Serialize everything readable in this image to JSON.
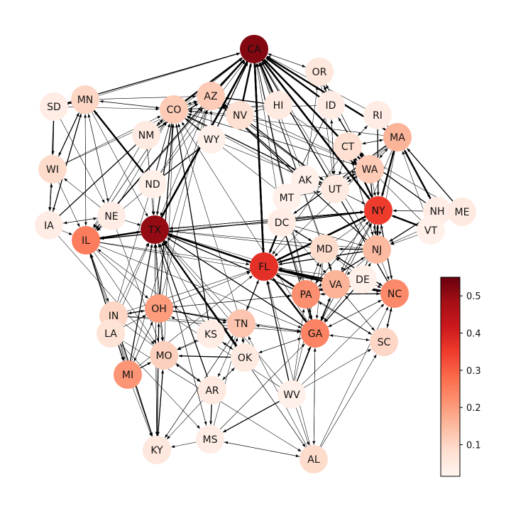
{
  "colorbar": {
    "ticks": [
      "0.1",
      "0.2",
      "0.3",
      "0.4",
      "0.5"
    ],
    "tick_values": [
      0.1,
      0.2,
      0.3,
      0.4,
      0.5
    ],
    "range": [
      0.015,
      0.55
    ],
    "colors": [
      "#fff5f0",
      "#fee0d2",
      "#fcbba1",
      "#fc9272",
      "#fb6a4a",
      "#ef3b2c",
      "#cb181d",
      "#a50f15",
      "#67000d"
    ]
  },
  "nodes": [
    {
      "id": "CA",
      "value": 0.52
    },
    {
      "id": "OR",
      "value": 0.06
    },
    {
      "id": "SD",
      "value": 0.04
    },
    {
      "id": "MN",
      "value": 0.1
    },
    {
      "id": "AZ",
      "value": 0.12
    },
    {
      "id": "CO",
      "value": 0.12
    },
    {
      "id": "NV",
      "value": 0.08
    },
    {
      "id": "HI",
      "value": 0.05
    },
    {
      "id": "ID",
      "value": 0.04
    },
    {
      "id": "RI",
      "value": 0.04
    },
    {
      "id": "MA",
      "value": 0.16
    },
    {
      "id": "NM",
      "value": 0.05
    },
    {
      "id": "WY",
      "value": 0.03
    },
    {
      "id": "CT",
      "value": 0.08
    },
    {
      "id": "WI",
      "value": 0.09
    },
    {
      "id": "WA",
      "value": 0.12
    },
    {
      "id": "ND",
      "value": 0.03
    },
    {
      "id": "AK",
      "value": 0.03
    },
    {
      "id": "UT",
      "value": 0.05
    },
    {
      "id": "MT",
      "value": 0.03
    },
    {
      "id": "NY",
      "value": 0.35
    },
    {
      "id": "NH",
      "value": 0.04
    },
    {
      "id": "ME",
      "value": 0.05
    },
    {
      "id": "IA",
      "value": 0.04
    },
    {
      "id": "NE",
      "value": 0.04
    },
    {
      "id": "TX",
      "value": 0.5
    },
    {
      "id": "DC",
      "value": 0.04
    },
    {
      "id": "VT",
      "value": 0.03
    },
    {
      "id": "IL",
      "value": 0.25
    },
    {
      "id": "MD",
      "value": 0.09
    },
    {
      "id": "NJ",
      "value": 0.15
    },
    {
      "id": "FL",
      "value": 0.37
    },
    {
      "id": "DE",
      "value": 0.03
    },
    {
      "id": "VA",
      "value": 0.16
    },
    {
      "id": "PA",
      "value": 0.22
    },
    {
      "id": "NC",
      "value": 0.23
    },
    {
      "id": "IN",
      "value": 0.1
    },
    {
      "id": "OH",
      "value": 0.2
    },
    {
      "id": "LA",
      "value": 0.07
    },
    {
      "id": "KS",
      "value": 0.04
    },
    {
      "id": "TN",
      "value": 0.13
    },
    {
      "id": "GA",
      "value": 0.24
    },
    {
      "id": "SC",
      "value": 0.1
    },
    {
      "id": "MO",
      "value": 0.11
    },
    {
      "id": "OK",
      "value": 0.05
    },
    {
      "id": "MI",
      "value": 0.21
    },
    {
      "id": "AR",
      "value": 0.05
    },
    {
      "id": "WV",
      "value": 0.03
    },
    {
      "id": "KY",
      "value": 0.06
    },
    {
      "id": "MS",
      "value": 0.04
    },
    {
      "id": "AL",
      "value": 0.09
    }
  ],
  "edges": [
    [
      "TX",
      "CA"
    ],
    [
      "FL",
      "CA"
    ],
    [
      "NY",
      "CA"
    ],
    [
      "AZ",
      "CA"
    ],
    [
      "CO",
      "CA"
    ],
    [
      "NV",
      "CA"
    ],
    [
      "HI",
      "CA"
    ],
    [
      "OR",
      "CA"
    ],
    [
      "ID",
      "CA"
    ],
    [
      "CT",
      "CA"
    ],
    [
      "MA",
      "CA"
    ],
    [
      "WA",
      "CA"
    ],
    [
      "UT",
      "CA"
    ],
    [
      "IL",
      "CA"
    ],
    [
      "MN",
      "CA"
    ],
    [
      "SD",
      "CA"
    ],
    [
      "NJ",
      "CA"
    ],
    [
      "PA",
      "CA"
    ],
    [
      "VA",
      "CA"
    ],
    [
      "GA",
      "CA"
    ],
    [
      "NC",
      "CA"
    ],
    [
      "MD",
      "CA"
    ],
    [
      "DC",
      "CA"
    ],
    [
      "MT",
      "CA"
    ],
    [
      "AK",
      "CA"
    ],
    [
      "WY",
      "CA"
    ],
    [
      "NM",
      "CA"
    ],
    [
      "ND",
      "CA"
    ],
    [
      "RI",
      "CA"
    ],
    [
      "CA",
      "OR"
    ],
    [
      "CA",
      "WA"
    ],
    [
      "CA",
      "AZ"
    ],
    [
      "CA",
      "TX"
    ],
    [
      "CA",
      "NY"
    ],
    [
      "CA",
      "FL"
    ],
    [
      "CA",
      "TX"
    ],
    [
      "FL",
      "TX"
    ],
    [
      "NY",
      "TX"
    ],
    [
      "IL",
      "TX"
    ],
    [
      "OK",
      "TX"
    ],
    [
      "AR",
      "TX"
    ],
    [
      "LA",
      "TX"
    ],
    [
      "KS",
      "TX"
    ],
    [
      "MO",
      "TX"
    ],
    [
      "TN",
      "TX"
    ],
    [
      "GA",
      "TX"
    ],
    [
      "MS",
      "TX"
    ],
    [
      "KY",
      "TX"
    ],
    [
      "IN",
      "TX"
    ],
    [
      "OH",
      "TX"
    ],
    [
      "MI",
      "TX"
    ],
    [
      "ND",
      "TX"
    ],
    [
      "NE",
      "TX"
    ],
    [
      "MN",
      "TX"
    ],
    [
      "AZ",
      "TX"
    ],
    [
      "CO",
      "TX"
    ],
    [
      "NM",
      "TX"
    ],
    [
      "DC",
      "TX"
    ],
    [
      "MD",
      "TX"
    ],
    [
      "NJ",
      "TX"
    ],
    [
      "PA",
      "TX"
    ],
    [
      "VA",
      "TX"
    ],
    [
      "AL",
      "TX"
    ],
    [
      "WV",
      "TX"
    ],
    [
      "TX",
      "AL"
    ],
    [
      "TX",
      "IL"
    ],
    [
      "TX",
      "KY"
    ],
    [
      "TX",
      "MO"
    ],
    [
      "TX",
      "MS"
    ],
    [
      "TX",
      "OK"
    ],
    [
      "TX",
      "FL"
    ],
    [
      "TX",
      "NY"
    ],
    [
      "CA",
      "NY"
    ],
    [
      "TX",
      "NY"
    ],
    [
      "FL",
      "NY"
    ],
    [
      "NJ",
      "NY"
    ],
    [
      "MA",
      "NY"
    ],
    [
      "CT",
      "NY"
    ],
    [
      "PA",
      "NY"
    ],
    [
      "MD",
      "NY"
    ],
    [
      "DC",
      "NY"
    ],
    [
      "VA",
      "NY"
    ],
    [
      "NH",
      "NY"
    ],
    [
      "VT",
      "NY"
    ],
    [
      "ME",
      "NY"
    ],
    [
      "RI",
      "NY"
    ],
    [
      "WA",
      "NY"
    ],
    [
      "UT",
      "NY"
    ],
    [
      "GA",
      "NY"
    ],
    [
      "NC",
      "NY"
    ],
    [
      "IL",
      "NY"
    ],
    [
      "DE",
      "NY"
    ],
    [
      "NY",
      "NJ"
    ],
    [
      "NY",
      "FL"
    ],
    [
      "NY",
      "MA"
    ],
    [
      "NY",
      "CT"
    ],
    [
      "CA",
      "FL"
    ],
    [
      "TX",
      "FL"
    ],
    [
      "NY",
      "FL"
    ],
    [
      "GA",
      "FL"
    ],
    [
      "NJ",
      "FL"
    ],
    [
      "PA",
      "FL"
    ],
    [
      "MD",
      "FL"
    ],
    [
      "VA",
      "FL"
    ],
    [
      "NC",
      "FL"
    ],
    [
      "DC",
      "FL"
    ],
    [
      "IL",
      "FL"
    ],
    [
      "OH",
      "FL"
    ],
    [
      "MI",
      "FL"
    ],
    [
      "IN",
      "FL"
    ],
    [
      "TN",
      "FL"
    ],
    [
      "AL",
      "FL"
    ],
    [
      "SC",
      "FL"
    ],
    [
      "MA",
      "FL"
    ],
    [
      "CT",
      "FL"
    ],
    [
      "WV",
      "FL"
    ],
    [
      "DE",
      "FL"
    ],
    [
      "FL",
      "GA"
    ],
    [
      "FL",
      "PA"
    ],
    [
      "FL",
      "TN"
    ],
    [
      "MN",
      "ND"
    ],
    [
      "MN",
      "IA"
    ],
    [
      "MN",
      "WI"
    ],
    [
      "MN",
      "SD"
    ],
    [
      "MN",
      "NE"
    ],
    [
      "SD",
      "WI"
    ],
    [
      "WI",
      "IA"
    ],
    [
      "IA",
      "WI"
    ],
    [
      "WI",
      "IL"
    ],
    [
      "IA",
      "IL"
    ],
    [
      "NE",
      "IL"
    ],
    [
      "NE",
      "IA"
    ],
    [
      "IA",
      "NE"
    ],
    [
      "IL",
      "IN"
    ],
    [
      "IN",
      "IL"
    ],
    [
      "IL",
      "MI"
    ],
    [
      "MI",
      "IL"
    ],
    [
      "IL",
      "MO"
    ],
    [
      "IL",
      "OH"
    ],
    [
      "OH",
      "IN"
    ],
    [
      "IN",
      "OH"
    ],
    [
      "MI",
      "OH"
    ],
    [
      "OH",
      "MI"
    ],
    [
      "MI",
      "IN"
    ],
    [
      "IN",
      "MI"
    ],
    [
      "IN",
      "KY"
    ],
    [
      "OH",
      "KY"
    ],
    [
      "MO",
      "KS"
    ],
    [
      "KS",
      "MO"
    ],
    [
      "MO",
      "KY"
    ],
    [
      "KY",
      "MO"
    ],
    [
      "MO",
      "AR"
    ],
    [
      "AR",
      "OK"
    ],
    [
      "OK",
      "AR"
    ],
    [
      "OK",
      "KS"
    ],
    [
      "KS",
      "OK"
    ],
    [
      "LA",
      "MS"
    ],
    [
      "MS",
      "AL"
    ],
    [
      "AL",
      "MS"
    ],
    [
      "MS",
      "KY"
    ],
    [
      "AR",
      "MS"
    ],
    [
      "TN",
      "GA"
    ],
    [
      "GA",
      "TN"
    ],
    [
      "TN",
      "KY"
    ],
    [
      "TN",
      "MO"
    ],
    [
      "TN",
      "OK"
    ],
    [
      "TN",
      "AR"
    ],
    [
      "GA",
      "SC"
    ],
    [
      "SC",
      "GA"
    ],
    [
      "SC",
      "NC"
    ],
    [
      "NC",
      "SC"
    ],
    [
      "GA",
      "NC"
    ],
    [
      "NC",
      "GA"
    ],
    [
      "AL",
      "GA"
    ],
    [
      "GA",
      "AL"
    ],
    [
      "VA",
      "NC"
    ],
    [
      "NC",
      "VA"
    ],
    [
      "VA",
      "GA"
    ],
    [
      "PA",
      "GA"
    ],
    [
      "PA",
      "NJ"
    ],
    [
      "NJ",
      "PA"
    ],
    [
      "PA",
      "MD"
    ],
    [
      "MD",
      "PA"
    ],
    [
      "MD",
      "VA"
    ],
    [
      "VA",
      "MD"
    ],
    [
      "DC",
      "MD"
    ],
    [
      "MD",
      "DC"
    ],
    [
      "DE",
      "NJ"
    ],
    [
      "DE",
      "PA"
    ],
    [
      "DE",
      "MD"
    ],
    [
      "NJ",
      "MD"
    ],
    [
      "MA",
      "CT"
    ],
    [
      "CT",
      "MA"
    ],
    [
      "MA",
      "NH"
    ],
    [
      "NH",
      "MA"
    ],
    [
      "ME",
      "MA"
    ],
    [
      "VT",
      "MA"
    ],
    [
      "RI",
      "MA"
    ],
    [
      "MA",
      "RI"
    ],
    [
      "CT",
      "RI"
    ],
    [
      "VT",
      "NH"
    ],
    [
      "NH",
      "VT"
    ],
    [
      "WA",
      "OR"
    ],
    [
      "OR",
      "WA"
    ],
    [
      "ID",
      "WA"
    ],
    [
      "WA",
      "ID"
    ],
    [
      "UT",
      "ID"
    ],
    [
      "ID",
      "UT"
    ],
    [
      "MT",
      "ID"
    ],
    [
      "WY",
      "CO"
    ],
    [
      "CO",
      "WY"
    ],
    [
      "NM",
      "CO"
    ],
    [
      "CO",
      "NM"
    ],
    [
      "AZ",
      "CO"
    ],
    [
      "CO",
      "AZ"
    ],
    [
      "NV",
      "AZ"
    ],
    [
      "AZ",
      "NV"
    ],
    [
      "UT",
      "AZ"
    ],
    [
      "AK",
      "WA"
    ],
    [
      "HI",
      "WA"
    ],
    [
      "WV",
      "VA"
    ],
    [
      "WV",
      "PA"
    ],
    [
      "WV",
      "OH"
    ],
    [
      "WV",
      "GA"
    ],
    [
      "WV",
      "AL"
    ],
    [
      "WV",
      "MS"
    ],
    [
      "AL",
      "TN"
    ],
    [
      "MS",
      "TN"
    ],
    [
      "KY",
      "TN"
    ],
    [
      "MI",
      "KY"
    ],
    [
      "MI",
      "MO"
    ],
    [
      "LA",
      "IN"
    ],
    [
      "LA",
      "OH"
    ],
    [
      "LA",
      "AL"
    ],
    [
      "IN",
      "AR"
    ],
    [
      "OK",
      "MO"
    ],
    [
      "AR",
      "KY"
    ],
    [
      "AR",
      "MO"
    ],
    [
      "ND",
      "CO"
    ],
    [
      "ND",
      "AZ"
    ],
    [
      "ND",
      "WY"
    ],
    [
      "NE",
      "MN"
    ],
    [
      "NE",
      "CO"
    ],
    [
      "SD",
      "IA"
    ],
    [
      "SD",
      "CO"
    ],
    [
      "IA",
      "MN"
    ],
    [
      "MN",
      "CO"
    ],
    [
      "MN",
      "AZ"
    ],
    [
      "MN",
      "IL"
    ],
    [
      "IL",
      "MN"
    ],
    [
      "WI",
      "MN"
    ],
    [
      "DC",
      "VA"
    ],
    [
      "DC",
      "NJ"
    ],
    [
      "DC",
      "PA"
    ],
    [
      "UT",
      "WA"
    ],
    [
      "UT",
      "CO"
    ],
    [
      "MT",
      "WA"
    ],
    [
      "MT",
      "CO"
    ],
    [
      "HI",
      "CO"
    ],
    [
      "NV",
      "CO"
    ],
    [
      "NV",
      "UT"
    ],
    [
      "CT",
      "NJ"
    ],
    [
      "NJ",
      "CT"
    ],
    [
      "RI",
      "NY"
    ],
    [
      "MA",
      "VA"
    ],
    [
      "MA",
      "DC"
    ],
    [
      "MA",
      "NJ"
    ],
    [
      "NY",
      "PA"
    ],
    [
      "NY",
      "VA"
    ],
    [
      "NY",
      "GA"
    ],
    [
      "NY",
      "NC"
    ],
    [
      "NY",
      "IL"
    ],
    [
      "IL",
      "GA"
    ],
    [
      "IL",
      "NC"
    ],
    [
      "OH",
      "GA"
    ],
    [
      "OH",
      "TN"
    ],
    [
      "OH",
      "MO"
    ],
    [
      "OH",
      "PA"
    ],
    [
      "IN",
      "GA"
    ],
    [
      "IN",
      "TN"
    ],
    [
      "KS",
      "TN"
    ],
    [
      "KS",
      "IL"
    ],
    [
      "OK",
      "TN"
    ],
    [
      "OK",
      "GA"
    ],
    [
      "GA",
      "OK"
    ],
    [
      "NC",
      "PA"
    ],
    [
      "NC",
      "MD"
    ],
    [
      "SC",
      "VA"
    ],
    [
      "SC",
      "PA"
    ],
    [
      "GA",
      "VA"
    ],
    [
      "GA",
      "PA"
    ],
    [
      "AL",
      "SC"
    ],
    [
      "AL",
      "NC"
    ],
    [
      "MS",
      "GA"
    ],
    [
      "KY",
      "IL"
    ],
    [
      "KY",
      "OH"
    ],
    [
      "WV",
      "SC"
    ],
    [
      "WV",
      "NC"
    ],
    [
      "WV",
      "MD"
    ],
    [
      "DE",
      "VA"
    ],
    [
      "DE",
      "GA"
    ],
    [
      "PA",
      "VA"
    ],
    [
      "PA",
      "OH"
    ],
    [
      "VA",
      "PA"
    ],
    [
      "WA",
      "MA"
    ],
    [
      "WA",
      "NJ"
    ],
    [
      "WA",
      "CO"
    ],
    [
      "WA",
      "UT"
    ],
    [
      "AZ",
      "WA"
    ],
    [
      "AZ",
      "UT"
    ],
    [
      "AZ",
      "IL"
    ],
    [
      "CO",
      "IL"
    ],
    [
      "CO",
      "MN"
    ],
    [
      "CO",
      "WA"
    ],
    [
      "CO",
      "AZ"
    ],
    [
      "HI",
      "AZ"
    ],
    [
      "HI",
      "NV"
    ],
    [
      "NV",
      "WA"
    ],
    [
      "OR",
      "UT"
    ],
    [
      "OR",
      "ID"
    ],
    [
      "ID",
      "OR"
    ],
    [
      "ID",
      "MT"
    ],
    [
      "ID",
      "CO"
    ],
    [
      "AK",
      "UT"
    ],
    [
      "AK",
      "OR"
    ],
    [
      "AK",
      "AZ"
    ],
    [
      "AK",
      "CO"
    ],
    [
      "MT",
      "UT"
    ],
    [
      "WY",
      "UT"
    ],
    [
      "WY",
      "AZ"
    ],
    [
      "NM",
      "AZ"
    ],
    [
      "NM",
      "TX"
    ],
    [
      "NM",
      "IL"
    ],
    [
      "ND",
      "MN"
    ],
    [
      "ND",
      "IL"
    ],
    [
      "SD",
      "MN"
    ],
    [
      "SD",
      "NE"
    ],
    [
      "NE",
      "WI"
    ],
    [
      "NE",
      "MO"
    ],
    [
      "IA",
      "MO"
    ],
    [
      "IA",
      "CO"
    ],
    [
      "WI",
      "CO"
    ],
    [
      "WI",
      "AZ"
    ],
    [
      "MI",
      "AZ"
    ],
    [
      "IN",
      "CO"
    ],
    [
      "OH",
      "CO"
    ],
    [
      "OH",
      "AZ"
    ],
    [
      "IL",
      "AZ"
    ],
    [
      "IL",
      "CO"
    ],
    [
      "MO",
      "CO"
    ],
    [
      "KS",
      "CO"
    ],
    [
      "TN",
      "CO"
    ],
    [
      "GA",
      "CO"
    ],
    [
      "MA",
      "CO"
    ],
    [
      "NY",
      "CO"
    ],
    [
      "NJ",
      "AZ"
    ],
    [
      "CT",
      "UT"
    ],
    [
      "RI",
      "CT"
    ],
    [
      "MA",
      "UT"
    ],
    [
      "MA",
      "WA"
    ],
    [
      "NH",
      "CT"
    ],
    [
      "ME",
      "CT"
    ],
    [
      "VT",
      "CT"
    ],
    [
      "VT",
      "NJ"
    ],
    [
      "ME",
      "NJ"
    ],
    [
      "NH",
      "NJ"
    ],
    [
      "NJ",
      "VA"
    ],
    [
      "NJ",
      "GA"
    ],
    [
      "NJ",
      "NC"
    ],
    [
      "MD",
      "GA"
    ],
    [
      "MD",
      "NC"
    ],
    [
      "VA",
      "SC"
    ],
    [
      "PA",
      "SC"
    ],
    [
      "PA",
      "NC"
    ],
    [
      "DE",
      "NC"
    ],
    [
      "DC",
      "GA"
    ],
    [
      "DC",
      "NC"
    ]
  ]
}
